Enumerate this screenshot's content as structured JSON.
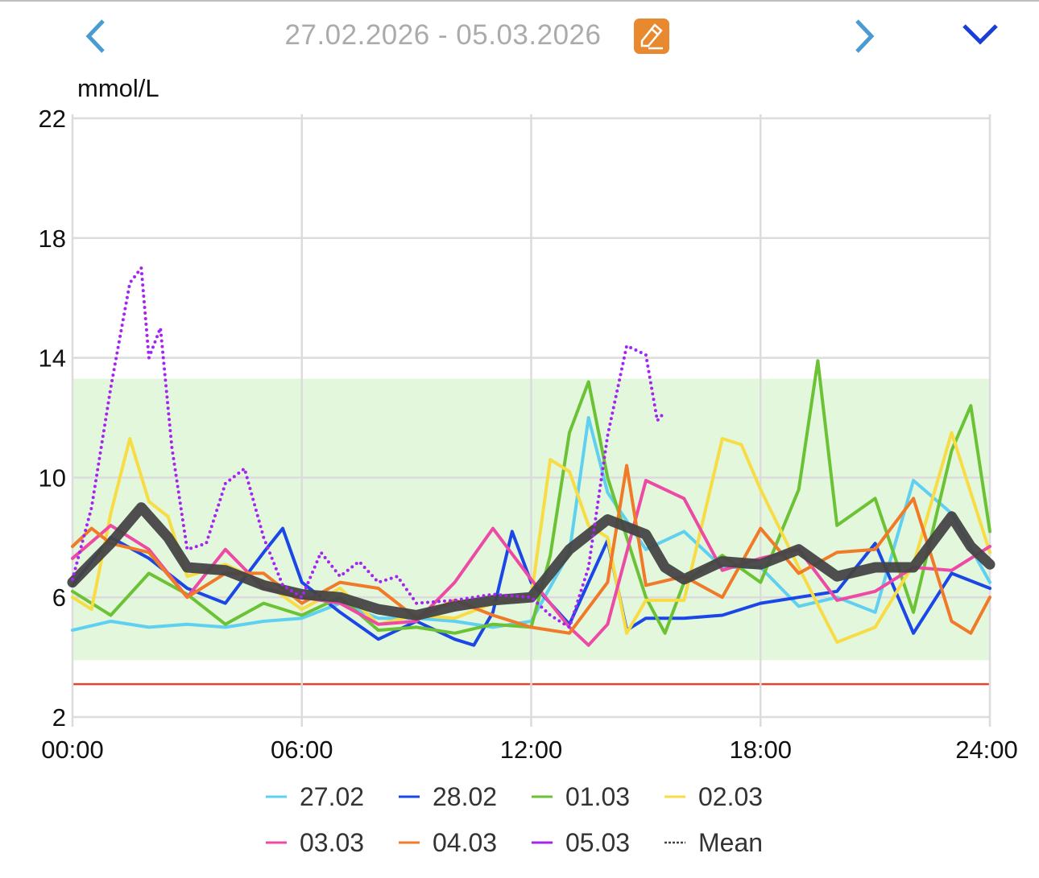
{
  "header": {
    "date_range": "27.02.2026 - 05.03.2026",
    "prev_icon": "chevron-left-icon",
    "next_icon": "chevron-right-icon",
    "edit_icon": "pencil-edit-icon",
    "expand_icon": "chevron-down-icon"
  },
  "colors": {
    "prev_next": "#4a9bd1",
    "expand": "#1a3fd8",
    "edit_bg": "#e8892f",
    "target_band": "#e2f7dc",
    "low_line": "#e8432b",
    "mean": "#444444"
  },
  "chart_data": {
    "type": "line",
    "ylabel": "mmol/L",
    "xlabel": "",
    "ylim": [
      2,
      22
    ],
    "xlim": [
      0,
      24
    ],
    "yticks": [
      2,
      6,
      10,
      14,
      18,
      22
    ],
    "ytick_labels": [
      "2",
      "6",
      "10",
      "14",
      "18",
      "22"
    ],
    "xticks": [
      0,
      6,
      12,
      18,
      24
    ],
    "xtick_labels": [
      "00:00",
      "06:00",
      "12:00",
      "18:00",
      "24:00"
    ],
    "grid": true,
    "target_range": [
      3.9,
      13.3
    ],
    "low_threshold": 3.1,
    "legend_position": "bottom",
    "series": [
      {
        "name": "27.02",
        "color": "#5fd0f0",
        "x": [
          0,
          1,
          2,
          3,
          4,
          5,
          6,
          7,
          8,
          9,
          10,
          11,
          12,
          13,
          13.5,
          14,
          15,
          16,
          17,
          18,
          19,
          20,
          21,
          22,
          23,
          24
        ],
        "y": [
          4.9,
          5.2,
          5.0,
          5.1,
          5.0,
          5.2,
          5.3,
          5.8,
          5.3,
          5.3,
          5.2,
          5.0,
          5.2,
          7.5,
          12.0,
          9.5,
          7.6,
          8.2,
          7.0,
          7.0,
          5.7,
          6.0,
          5.5,
          9.9,
          8.8,
          6.5
        ]
      },
      {
        "name": "28.02",
        "color": "#1a47e6",
        "x": [
          0,
          1,
          2,
          3,
          4,
          5,
          5.5,
          6,
          7,
          8,
          9,
          10,
          10.5,
          11,
          11.5,
          12,
          13,
          14,
          14.5,
          15,
          16,
          17,
          18,
          19,
          20,
          21,
          22,
          23,
          24
        ],
        "y": [
          6.4,
          8.0,
          7.3,
          6.3,
          5.8,
          7.5,
          8.3,
          6.5,
          5.5,
          4.6,
          5.2,
          4.6,
          4.4,
          5.5,
          8.2,
          6.5,
          5.1,
          7.9,
          4.9,
          5.3,
          5.3,
          5.4,
          5.8,
          6.0,
          6.2,
          7.8,
          4.8,
          6.8,
          6.3
        ]
      },
      {
        "name": "01.03",
        "color": "#6cc235",
        "x": [
          0,
          1,
          2,
          3,
          4,
          5,
          6,
          7,
          8,
          9,
          10,
          11,
          12,
          12.5,
          13,
          13.5,
          14,
          15,
          15.5,
          16,
          17,
          18,
          19,
          19.5,
          20,
          21,
          22,
          23,
          23.5,
          24
        ],
        "y": [
          6.2,
          5.4,
          6.8,
          6.1,
          5.1,
          5.8,
          5.4,
          6.0,
          4.9,
          5.0,
          4.8,
          5.1,
          5.0,
          7.4,
          11.5,
          13.2,
          10.0,
          6.0,
          4.8,
          6.5,
          7.4,
          6.5,
          9.6,
          13.9,
          8.4,
          9.3,
          5.5,
          10.9,
          12.4,
          8.2
        ]
      },
      {
        "name": "02.03",
        "color": "#f7dc45",
        "x": [
          0,
          0.5,
          1,
          1.5,
          2,
          2.5,
          3,
          4,
          5,
          6,
          7,
          8,
          9,
          10,
          11,
          12,
          12.5,
          13,
          13.5,
          14,
          14.5,
          15,
          16,
          17,
          17.5,
          18,
          19,
          20,
          21,
          22,
          23,
          24
        ],
        "y": [
          6.0,
          5.6,
          8.8,
          11.3,
          9.2,
          8.7,
          6.7,
          7.1,
          6.5,
          5.6,
          6.3,
          5.1,
          5.4,
          5.3,
          5.8,
          6.0,
          10.6,
          10.2,
          8.4,
          8.0,
          4.8,
          5.9,
          5.9,
          11.3,
          11.1,
          9.6,
          7.0,
          4.5,
          5.0,
          7.1,
          11.5,
          7.5
        ]
      },
      {
        "name": "03.03",
        "color": "#ec4aa5",
        "x": [
          0,
          1,
          2,
          3,
          4,
          5,
          6,
          7,
          8,
          9,
          10,
          11,
          12,
          13,
          13.5,
          14,
          15,
          16,
          17,
          18,
          19,
          20,
          21,
          22,
          23,
          24
        ],
        "y": [
          7.3,
          8.4,
          7.6,
          6.0,
          7.6,
          6.3,
          6.0,
          5.8,
          5.1,
          5.2,
          6.5,
          8.3,
          6.6,
          5.0,
          4.4,
          5.1,
          9.9,
          9.3,
          6.9,
          7.3,
          7.6,
          5.9,
          6.2,
          7.0,
          6.9,
          7.7
        ]
      },
      {
        "name": "04.03",
        "color": "#f07a28",
        "x": [
          0,
          0.5,
          1,
          2,
          3,
          4,
          5,
          6,
          7,
          8,
          9,
          10,
          11,
          12,
          13,
          14,
          14.5,
          15,
          16,
          17,
          18,
          19,
          20,
          21,
          22,
          23,
          23.5,
          24
        ],
        "y": [
          7.7,
          8.3,
          7.8,
          7.5,
          6.0,
          6.8,
          6.8,
          5.8,
          6.5,
          6.3,
          5.3,
          5.9,
          5.4,
          5.0,
          4.8,
          6.5,
          10.4,
          6.4,
          6.7,
          6.0,
          8.3,
          6.8,
          7.5,
          7.6,
          9.3,
          5.2,
          4.8,
          6.0
        ]
      },
      {
        "name": "05.03",
        "color": "#a524f2",
        "x": [
          0,
          0.5,
          1,
          1.5,
          1.8,
          2,
          2.3,
          2.6,
          3,
          3.5,
          4,
          4.5,
          5,
          5.5,
          6,
          6.5,
          7,
          7.5,
          8,
          8.5,
          9,
          10,
          11,
          12,
          12.5,
          13,
          13.5,
          14,
          14.5,
          15,
          15.3,
          15.5
        ],
        "y": [
          6.6,
          9.0,
          13.0,
          16.5,
          17.0,
          14.0,
          15.0,
          11.0,
          7.6,
          7.8,
          9.8,
          10.3,
          8.0,
          6.4,
          6.0,
          7.5,
          6.7,
          7.2,
          6.5,
          6.7,
          5.8,
          5.9,
          6.1,
          6.0,
          5.4,
          5.0,
          7.0,
          11.4,
          14.4,
          14.1,
          11.9,
          12.2
        ]
      },
      {
        "name": "Mean",
        "color": "#444444",
        "x": [
          0,
          1,
          1.8,
          2.5,
          3,
          4,
          5,
          6,
          7,
          8,
          9,
          10,
          11,
          12,
          12.5,
          13,
          14,
          15,
          15.5,
          16,
          17,
          18,
          19,
          20,
          21,
          22,
          23,
          23.5,
          24
        ],
        "y": [
          6.5,
          7.8,
          9.0,
          8.0,
          7.0,
          6.9,
          6.4,
          6.1,
          6.0,
          5.6,
          5.4,
          5.7,
          5.9,
          6.0,
          6.8,
          7.6,
          8.6,
          8.1,
          7.0,
          6.6,
          7.2,
          7.1,
          7.6,
          6.7,
          7.0,
          7.0,
          8.7,
          7.7,
          7.1
        ]
      }
    ]
  }
}
